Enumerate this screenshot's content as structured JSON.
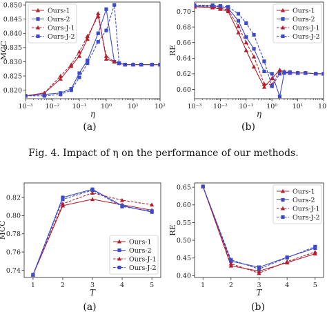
{
  "caption": "Fig. 4.    Impact of η on the performance of our methods.",
  "colors": {
    "red": "#b3202e",
    "blue": "#3d4bc7"
  },
  "chart_data": [
    {
      "type": "line",
      "panel_label": "(a)",
      "xlabel": "η",
      "ylabel": "MCC",
      "xscale": "log",
      "xlim": [
        0.001,
        100
      ],
      "ylim": [
        0.817,
        0.851
      ],
      "xticks": [
        0.001,
        0.01,
        0.1,
        1,
        10,
        100
      ],
      "xtick_labels": [
        "10⁻³",
        "10⁻²",
        "10⁻¹",
        "10⁰",
        "10¹",
        "10²"
      ],
      "yticks": [
        0.82,
        0.825,
        0.83,
        0.835,
        0.84,
        0.845,
        0.85
      ],
      "ytick_labels": [
        "0.820",
        "0.825",
        "0.830",
        "0.835",
        "0.840",
        "0.845",
        "0.850"
      ],
      "legend_loc": "upper-left",
      "series": [
        {
          "name": "Ours-1",
          "color": "#b3202e",
          "marker": "triangle",
          "dashed": false,
          "x": [
            0.001,
            0.005,
            0.02,
            0.05,
            0.1,
            0.2,
            0.5,
            1,
            2,
            3,
            5,
            10,
            20,
            50,
            100
          ],
          "y": [
            0.818,
            0.819,
            0.824,
            0.8285,
            0.832,
            0.838,
            0.847,
            0.831,
            0.83,
            0.8295,
            0.829,
            0.829,
            0.829,
            0.829,
            0.829
          ]
        },
        {
          "name": "Ours-2",
          "color": "#3d4bc7",
          "marker": "square",
          "dashed": false,
          "x": [
            0.001,
            0.005,
            0.02,
            0.05,
            0.1,
            0.2,
            0.5,
            1,
            2,
            3,
            5,
            10,
            20,
            50,
            100
          ],
          "y": [
            0.818,
            0.8185,
            0.819,
            0.8205,
            0.826,
            0.8305,
            0.84,
            0.8485,
            0.83,
            0.8295,
            0.829,
            0.829,
            0.829,
            0.829,
            0.829
          ]
        },
        {
          "name": "Ours-J-1",
          "color": "#b3202e",
          "marker": "triangle",
          "dashed": true,
          "x": [
            0.001,
            0.005,
            0.02,
            0.05,
            0.1,
            0.2,
            0.5,
            1,
            2,
            3,
            5,
            10,
            20,
            50,
            100
          ],
          "y": [
            0.818,
            0.819,
            0.825,
            0.829,
            0.8335,
            0.839,
            0.846,
            0.832,
            0.83,
            0.8295,
            0.829,
            0.829,
            0.829,
            0.829,
            0.829
          ]
        },
        {
          "name": "Ours-J-2",
          "color": "#3d4bc7",
          "marker": "square",
          "dashed": true,
          "x": [
            0.001,
            0.005,
            0.02,
            0.05,
            0.1,
            0.2,
            0.5,
            1,
            2,
            3,
            5,
            10,
            20,
            50,
            100
          ],
          "y": [
            0.818,
            0.818,
            0.8185,
            0.82,
            0.8245,
            0.8295,
            0.837,
            0.841,
            0.85,
            0.8295,
            0.829,
            0.829,
            0.829,
            0.829,
            0.829
          ]
        }
      ]
    },
    {
      "type": "line",
      "panel_label": "(b)",
      "xlabel": "η",
      "ylabel": "RE",
      "xscale": "log",
      "xlim": [
        0.001,
        100
      ],
      "ylim": [
        0.588,
        0.712
      ],
      "xticks": [
        0.001,
        0.01,
        0.1,
        1,
        10,
        100
      ],
      "xtick_labels": [
        "10⁻³",
        "10⁻²",
        "10⁻¹",
        "10⁰",
        "10¹",
        "10²"
      ],
      "yticks": [
        0.6,
        0.62,
        0.64,
        0.66,
        0.68,
        0.7
      ],
      "ytick_labels": [
        "0.60",
        "0.62",
        "0.64",
        "0.66",
        "0.68",
        "0.70"
      ],
      "legend_loc": "upper-right",
      "series": [
        {
          "name": "Ours-1",
          "color": "#b3202e",
          "marker": "triangle",
          "dashed": false,
          "x": [
            0.001,
            0.005,
            0.01,
            0.02,
            0.05,
            0.1,
            0.2,
            0.5,
            1,
            2,
            3,
            5,
            10,
            20,
            50,
            100
          ],
          "y": [
            0.706,
            0.705,
            0.703,
            0.7,
            0.673,
            0.65,
            0.629,
            0.603,
            0.614,
            0.625,
            0.622,
            0.621,
            0.621,
            0.621,
            0.62,
            0.62
          ]
        },
        {
          "name": "Ours-2",
          "color": "#3d4bc7",
          "marker": "square",
          "dashed": false,
          "x": [
            0.001,
            0.005,
            0.01,
            0.02,
            0.05,
            0.1,
            0.2,
            0.5,
            1,
            2,
            3,
            5,
            10,
            20,
            50,
            100
          ],
          "y": [
            0.707,
            0.707,
            0.706,
            0.704,
            0.688,
            0.667,
            0.652,
            0.623,
            0.62,
            0.591,
            0.621,
            0.621,
            0.621,
            0.621,
            0.62,
            0.62
          ]
        },
        {
          "name": "Ours-J-1",
          "color": "#b3202e",
          "marker": "triangle",
          "dashed": true,
          "x": [
            0.001,
            0.005,
            0.01,
            0.02,
            0.05,
            0.1,
            0.2,
            0.5,
            1,
            2,
            3,
            5,
            10,
            20,
            50,
            100
          ],
          "y": [
            0.706,
            0.706,
            0.704,
            0.702,
            0.681,
            0.66,
            0.642,
            0.607,
            0.606,
            0.624,
            0.623,
            0.622,
            0.621,
            0.621,
            0.62,
            0.62
          ]
        },
        {
          "name": "Ours-J-2",
          "color": "#3d4bc7",
          "marker": "square",
          "dashed": true,
          "x": [
            0.001,
            0.005,
            0.01,
            0.02,
            0.05,
            0.1,
            0.2,
            0.5,
            1,
            2,
            3,
            5,
            10,
            20,
            50,
            100
          ],
          "y": [
            0.708,
            0.708,
            0.707,
            0.706,
            0.697,
            0.685,
            0.67,
            0.636,
            0.604,
            0.62,
            0.622,
            0.622,
            0.621,
            0.621,
            0.62,
            0.62
          ]
        }
      ]
    },
    {
      "type": "line",
      "panel_label": "(a)",
      "xlabel": "T",
      "ylabel": "MCC",
      "xscale": "linear",
      "xlim": [
        0.7,
        5.3
      ],
      "ylim": [
        0.732,
        0.836
      ],
      "xticks": [
        1,
        2,
        3,
        4,
        5
      ],
      "xtick_labels": [
        "1",
        "2",
        "3",
        "4",
        "5"
      ],
      "yticks": [
        0.74,
        0.76,
        0.78,
        0.8,
        0.82
      ],
      "ytick_labels": [
        "0.74",
        "0.76",
        "0.78",
        "0.80",
        "0.82"
      ],
      "legend_loc": "lower-right",
      "series": [
        {
          "name": "Ours-1",
          "color": "#b3202e",
          "marker": "triangle",
          "dashed": false,
          "x": [
            1,
            2,
            3,
            4,
            5
          ],
          "y": [
            0.735,
            0.811,
            0.818,
            0.812,
            0.806
          ]
        },
        {
          "name": "Ours-2",
          "color": "#3d4bc7",
          "marker": "square",
          "dashed": false,
          "x": [
            1,
            2,
            3,
            4,
            5
          ],
          "y": [
            0.735,
            0.82,
            0.829,
            0.811,
            0.804
          ]
        },
        {
          "name": "Ours-J-1",
          "color": "#b3202e",
          "marker": "triangle",
          "dashed": true,
          "x": [
            1,
            2,
            3,
            4,
            5
          ],
          "y": [
            0.735,
            0.813,
            0.825,
            0.817,
            0.812
          ]
        },
        {
          "name": "Ours-J-2",
          "color": "#3d4bc7",
          "marker": "square",
          "dashed": true,
          "x": [
            1,
            2,
            3,
            4,
            5
          ],
          "y": [
            0.735,
            0.818,
            0.828,
            0.81,
            0.805
          ]
        }
      ]
    },
    {
      "type": "line",
      "panel_label": "(b)",
      "xlabel": "T",
      "ylabel": "RE",
      "xscale": "linear",
      "xlim": [
        0.7,
        5.3
      ],
      "ylim": [
        0.395,
        0.662
      ],
      "xticks": [
        1,
        2,
        3,
        4,
        5
      ],
      "xtick_labels": [
        "1",
        "2",
        "3",
        "4",
        "5"
      ],
      "yticks": [
        0.4,
        0.45,
        0.5,
        0.55,
        0.6,
        0.65
      ],
      "ytick_labels": [
        "0.40",
        "0.45",
        "0.50",
        "0.55",
        "0.60",
        "0.65"
      ],
      "legend_loc": "upper-right",
      "series": [
        {
          "name": "Ours-1",
          "color": "#b3202e",
          "marker": "triangle",
          "dashed": false,
          "x": [
            1,
            2,
            3,
            4,
            5
          ],
          "y": [
            0.652,
            0.428,
            0.413,
            0.437,
            0.462
          ]
        },
        {
          "name": "Ours-2",
          "color": "#3d4bc7",
          "marker": "square",
          "dashed": false,
          "x": [
            1,
            2,
            3,
            4,
            5
          ],
          "y": [
            0.652,
            0.441,
            0.424,
            0.452,
            0.478
          ]
        },
        {
          "name": "Ours-J-1",
          "color": "#b3202e",
          "marker": "triangle",
          "dashed": true,
          "x": [
            1,
            2,
            3,
            4,
            5
          ],
          "y": [
            0.652,
            0.434,
            0.407,
            0.44,
            0.467
          ]
        },
        {
          "name": "Ours-J-2",
          "color": "#3d4bc7",
          "marker": "square",
          "dashed": true,
          "x": [
            1,
            2,
            3,
            4,
            5
          ],
          "y": [
            0.652,
            0.445,
            0.419,
            0.451,
            0.482
          ]
        }
      ]
    }
  ]
}
